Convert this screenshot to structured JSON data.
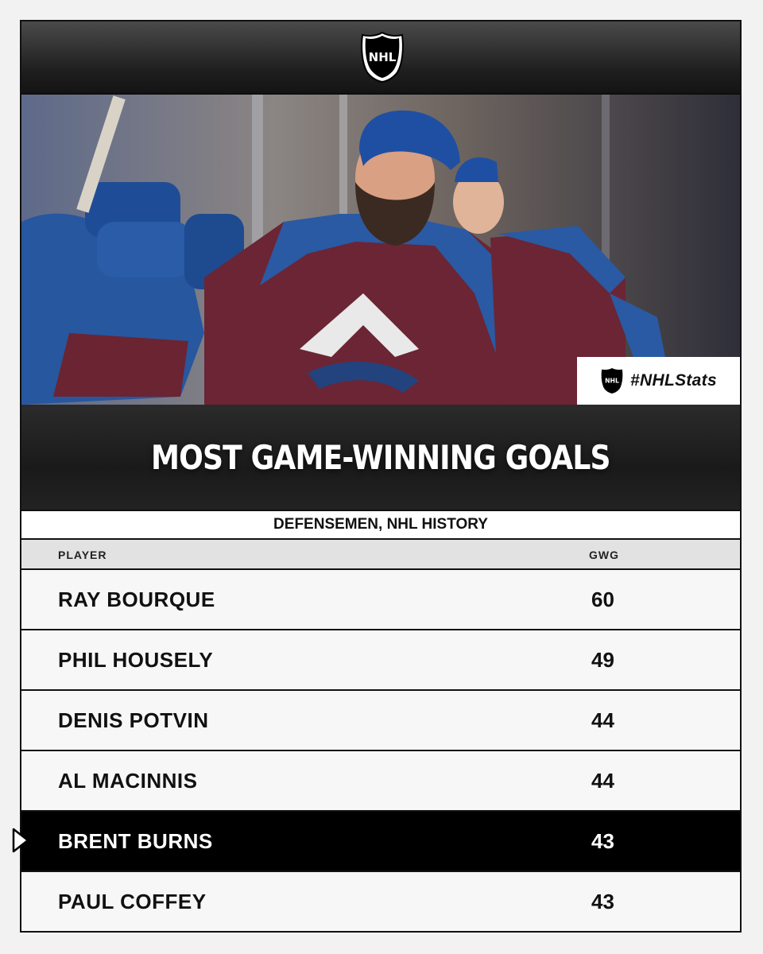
{
  "header": {
    "logo_icon": "nhl-shield-logo"
  },
  "photo": {
    "hashtag": "#NHLStats",
    "hashtag_icon": "nhl-shield-logo"
  },
  "title": "MOST GAME-WINNING GOALS",
  "subtitle": "DEFENSEMEN, NHL HISTORY",
  "columns": {
    "player": "PLAYER",
    "value": "GWG"
  },
  "rows": [
    {
      "name": "RAY BOURQUE",
      "gwg": "60"
    },
    {
      "name": "PHIL HOUSELY",
      "gwg": "49"
    },
    {
      "name": "DENIS POTVIN",
      "gwg": "44"
    },
    {
      "name": "AL MACINNIS",
      "gwg": "44"
    },
    {
      "name": "BRENT BURNS",
      "gwg": "43"
    },
    {
      "name": "PAUL COFFEY",
      "gwg": "43"
    }
  ],
  "highlighted_row": 4,
  "colors": {
    "highlight_bg": "#000000",
    "highlight_text": "#ffffff",
    "row_bg": "#f7f7f7"
  }
}
